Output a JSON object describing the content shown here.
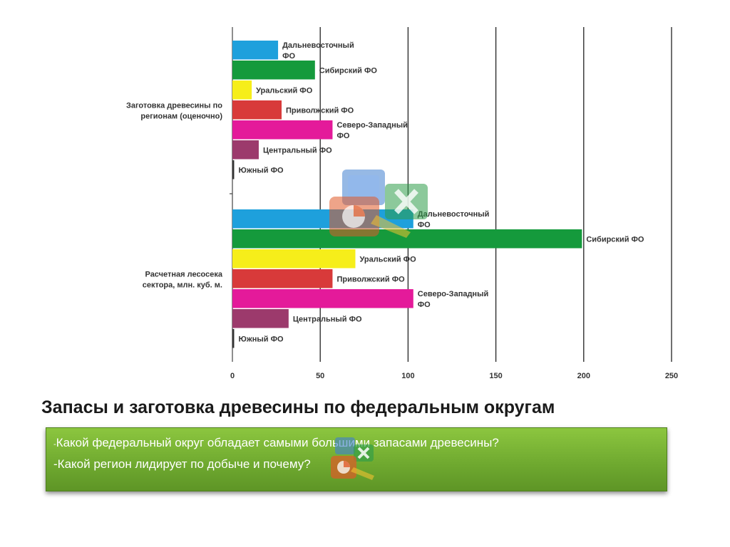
{
  "slide": {
    "title": "Запасы и заготовка древесины по федеральным округам",
    "questions": {
      "q1_dash": "-",
      "q1_text": "Какой федеральный округ обладает самыми большими запасами древесины?",
      "q2_text": "-Какой регион лидирует по добыче и почему?"
    }
  },
  "icons": {
    "overlay": "office-logo-icon",
    "small_overlay": "office-logo-icon"
  },
  "chart_data": {
    "type": "bar",
    "orientation": "horizontal",
    "xlim": [
      0,
      250
    ],
    "x_ticks": [
      0,
      50,
      100,
      150,
      200,
      250
    ],
    "x_tick_labels": [
      "0",
      "50",
      "100",
      "150",
      "200",
      "250"
    ],
    "grid": "vertical",
    "legend": "none",
    "groups": [
      {
        "label_lines": [
          "Заготовка древесины по",
          "регионам (оценочно)"
        ],
        "bars": [
          {
            "label_lines": [
              "Дальневосточный",
              "ФО"
            ],
            "value": 26,
            "color": "#1ea0dc"
          },
          {
            "label_lines": [
              "Сибирский ФО"
            ],
            "value": 47,
            "color": "#159a3c"
          },
          {
            "label_lines": [
              "Уральский ФО"
            ],
            "value": 11,
            "color": "#f6ee1a"
          },
          {
            "label_lines": [
              "Приволжский ФО"
            ],
            "value": 28,
            "color": "#d83a3a"
          },
          {
            "label_lines": [
              "Северо-Западный",
              "ФО"
            ],
            "value": 57,
            "color": "#e41a9a"
          },
          {
            "label_lines": [
              "Центральный ФО"
            ],
            "value": 15,
            "color": "#9c3a6c"
          },
          {
            "label_lines": [
              "Южный ФО"
            ],
            "value": 1,
            "color": "#333333"
          }
        ]
      },
      {
        "label_lines": [
          "Расчетная лесосека",
          "сектора, млн. куб. м."
        ],
        "bars": [
          {
            "label_lines": [
              "Дальневосточный",
              "ФО"
            ],
            "value": 103,
            "color": "#1ea0dc"
          },
          {
            "label_lines": [
              "Сибирский ФО"
            ],
            "value": 199,
            "color": "#159a3c"
          },
          {
            "label_lines": [
              "Уральский ФО"
            ],
            "value": 70,
            "color": "#f6ee1a"
          },
          {
            "label_lines": [
              "Приволжский ФО"
            ],
            "value": 57,
            "color": "#d83a3a"
          },
          {
            "label_lines": [
              "Северо-Западный",
              "ФО"
            ],
            "value": 103,
            "color": "#e41a9a"
          },
          {
            "label_lines": [
              "Центральный ФО"
            ],
            "value": 32,
            "color": "#9c3a6c"
          },
          {
            "label_lines": [
              "Южный ФО"
            ],
            "value": 1,
            "color": "#333333"
          }
        ]
      }
    ]
  }
}
